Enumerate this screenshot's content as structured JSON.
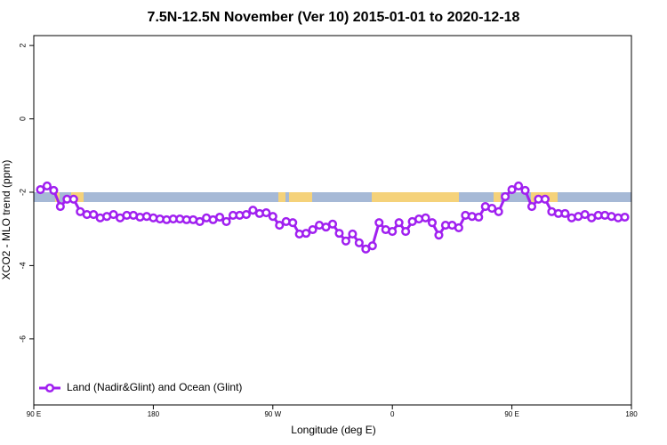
{
  "chart_data": {
    "type": "line",
    "title": "7.5N-12.5N November (Ver 10)   2015-01-01 to 2020-12-18",
    "x_label": "Longitude (deg E)",
    "y_label": "XCO2 - MLO trend (ppm)",
    "xlim": [
      90,
      540
    ],
    "ylim": [
      -7.8,
      2.27
    ],
    "xticks": [
      {
        "value": 90,
        "label": "90 E"
      },
      {
        "value": 180,
        "label": "180"
      },
      {
        "value": 270,
        "label": "90 W"
      },
      {
        "value": 360,
        "label": "0"
      },
      {
        "value": 450,
        "label": "90 E"
      },
      {
        "value": 540,
        "label": "180"
      }
    ],
    "yticks": [
      -6,
      -4,
      -2,
      0,
      2
    ],
    "legend": "bottomleft",
    "x": [
      95,
      100,
      105,
      110,
      115,
      120,
      125,
      130,
      135,
      140,
      145,
      150,
      155,
      160,
      165,
      170,
      175,
      180,
      185,
      190,
      195,
      200,
      205,
      210,
      215,
      220,
      225,
      230,
      235,
      240,
      245,
      250,
      255,
      260,
      265,
      270,
      275,
      280,
      285,
      290,
      295,
      300,
      305,
      310,
      315,
      320,
      325,
      330,
      335,
      340,
      345,
      350,
      355,
      360,
      365,
      370,
      375,
      380,
      385,
      390,
      395,
      400,
      405,
      410,
      415,
      420,
      425,
      430,
      435,
      440,
      445,
      450,
      455,
      460,
      465,
      470,
      475,
      480,
      485,
      490,
      495,
      500,
      505,
      510,
      515,
      520,
      525,
      530,
      535
    ],
    "series": [
      {
        "name": "Land (Nadir&Glint) and Ocean (Glint)",
        "color": "#a020f0",
        "values": [
          -1.93,
          -1.83,
          -1.95,
          -2.39,
          -2.19,
          -2.19,
          -2.53,
          -2.61,
          -2.61,
          -2.7,
          -2.66,
          -2.61,
          -2.7,
          -2.63,
          -2.63,
          -2.68,
          -2.66,
          -2.7,
          -2.73,
          -2.75,
          -2.73,
          -2.73,
          -2.75,
          -2.75,
          -2.8,
          -2.7,
          -2.75,
          -2.68,
          -2.8,
          -2.63,
          -2.63,
          -2.61,
          -2.49,
          -2.58,
          -2.56,
          -2.66,
          -2.9,
          -2.8,
          -2.83,
          -3.14,
          -3.12,
          -3.02,
          -2.9,
          -2.95,
          -2.87,
          -3.12,
          -3.33,
          -3.14,
          -3.38,
          -3.55,
          -3.46,
          -2.83,
          -3.02,
          -3.07,
          -2.83,
          -3.07,
          -2.8,
          -2.73,
          -2.7,
          -2.83,
          -3.17,
          -2.9,
          -2.9,
          -2.97,
          -2.63,
          -2.66,
          -2.68,
          -2.39,
          -2.44,
          -2.53,
          -2.12,
          -1.93,
          -1.83,
          -1.95,
          -2.39,
          -2.19,
          -2.19,
          -2.53,
          -2.58,
          -2.58,
          -2.7,
          -2.66,
          -2.61,
          -2.7,
          -2.63,
          -2.63,
          -2.66,
          -2.7,
          -2.68
        ]
      }
    ]
  }
}
